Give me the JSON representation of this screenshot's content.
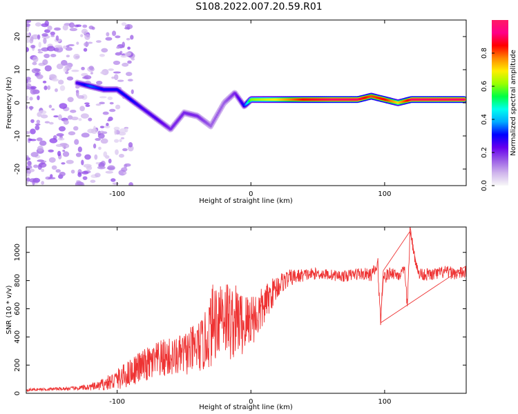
{
  "title": "S108.2022.007.20.59.R01",
  "colors": {
    "snr_line": "#ee3333",
    "colormap": [
      "#f8f8f8",
      "#cfb4ec",
      "#9a5ce6",
      "#6600ee",
      "#0000ff",
      "#00aaff",
      "#00ffee",
      "#00ff44",
      "#99ff00",
      "#ffee00",
      "#ff8800",
      "#ff0000",
      "#ff0088",
      "#ff1a66"
    ]
  },
  "chart_data": [
    {
      "type": "heatmap",
      "name": "spectrogram",
      "xlabel": "Height of straight line (km)",
      "ylabel": "Frequency (Hz)",
      "xlim": [
        -168,
        161
      ],
      "ylim": [
        -25,
        25
      ],
      "x_ticks": [
        "-100",
        "0",
        "100"
      ],
      "y_ticks": [
        "-20",
        "-10",
        "0",
        "10",
        "20"
      ],
      "colorbar": {
        "label": "Normalized spectral amplitude",
        "range": [
          0,
          1
        ],
        "ticks": [
          "0.0",
          "0.2",
          "0.4",
          "0.6",
          "0.8"
        ]
      },
      "ridge": [
        {
          "x": -130,
          "y": 6,
          "amp": 0.25
        },
        {
          "x": -120,
          "y": 5,
          "amp": 0.35
        },
        {
          "x": -110,
          "y": 4,
          "amp": 0.3
        },
        {
          "x": -100,
          "y": 4,
          "amp": 0.3
        },
        {
          "x": -90,
          "y": 1,
          "amp": 0.3
        },
        {
          "x": -80,
          "y": -2,
          "amp": 0.25
        },
        {
          "x": -70,
          "y": -5,
          "amp": 0.25
        },
        {
          "x": -60,
          "y": -8,
          "amp": 0.2
        },
        {
          "x": -50,
          "y": -3,
          "amp": 0.2
        },
        {
          "x": -40,
          "y": -4,
          "amp": 0.2
        },
        {
          "x": -30,
          "y": -7,
          "amp": 0.15
        },
        {
          "x": -20,
          "y": 0,
          "amp": 0.15
        },
        {
          "x": -12,
          "y": 3,
          "amp": 0.2
        },
        {
          "x": -5,
          "y": -1,
          "amp": 0.3
        },
        {
          "x": 0,
          "y": 1,
          "amp": 0.6
        },
        {
          "x": 20,
          "y": 1,
          "amp": 0.7
        },
        {
          "x": 40,
          "y": 1,
          "amp": 0.85
        },
        {
          "x": 60,
          "y": 1,
          "amp": 0.9
        },
        {
          "x": 80,
          "y": 1,
          "amp": 0.9
        },
        {
          "x": 90,
          "y": 2,
          "amp": 0.8
        },
        {
          "x": 100,
          "y": 1,
          "amp": 0.85
        },
        {
          "x": 110,
          "y": 0,
          "amp": 0.7
        },
        {
          "x": 120,
          "y": 1,
          "amp": 0.9
        },
        {
          "x": 140,
          "y": 1,
          "amp": 0.9
        },
        {
          "x": 160,
          "y": 1,
          "amp": 0.9
        }
      ]
    },
    {
      "type": "line",
      "name": "snr",
      "xlabel": "Height of straight line (km)",
      "ylabel": "SNR (10 * v/v)",
      "xlim": [
        -168,
        161
      ],
      "ylim": [
        0,
        1180
      ],
      "x_ticks": [
        "-100",
        "0",
        "100"
      ],
      "y_ticks": [
        "0",
        "200",
        "400",
        "600",
        "800",
        "1000"
      ],
      "grid": false,
      "series": [
        {
          "x": [
            -168,
            -150,
            -130,
            -115,
            -105,
            -95,
            -85,
            -75,
            -65,
            -55,
            -45,
            -35,
            -28,
            -22,
            -15,
            -10,
            -5,
            0,
            5,
            10,
            15,
            20,
            25,
            30,
            40,
            50,
            60,
            70,
            80,
            90,
            95,
            97,
            99,
            100,
            105,
            110,
            115,
            117,
            119,
            125,
            135,
            145,
            155,
            161
          ],
          "y": [
            25,
            30,
            35,
            50,
            80,
            120,
            180,
            210,
            250,
            260,
            300,
            350,
            500,
            600,
            500,
            520,
            480,
            540,
            550,
            620,
            700,
            760,
            800,
            820,
            840,
            850,
            840,
            830,
            850,
            840,
            900,
            500,
            870,
            820,
            860,
            840,
            860,
            620,
            1150,
            850,
            840,
            860,
            850,
            860
          ],
          "volatility": [
            10,
            10,
            15,
            30,
            60,
            90,
            110,
            130,
            140,
            140,
            170,
            200,
            300,
            300,
            280,
            250,
            230,
            200,
            180,
            140,
            110,
            90,
            70,
            60,
            45,
            40,
            40,
            40,
            45,
            45,
            60,
            60,
            60,
            50,
            45,
            45,
            45,
            45,
            45,
            45,
            45,
            45,
            45,
            45
          ]
        }
      ]
    }
  ]
}
